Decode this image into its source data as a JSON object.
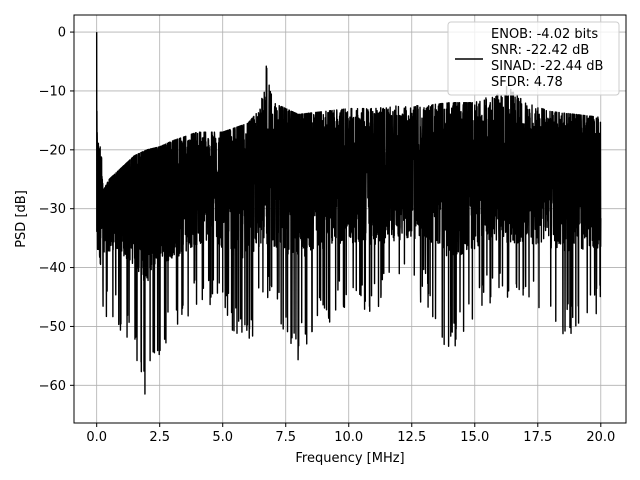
{
  "chart_data": {
    "type": "line",
    "title": "",
    "xlabel": "Frequency [MHz]",
    "ylabel": "PSD [dB]",
    "xlim": [
      -0.9,
      21.0
    ],
    "ylim": [
      -66.4,
      2.9
    ],
    "xticks": [
      0.0,
      2.5,
      5.0,
      7.5,
      10.0,
      12.5,
      15.0,
      17.5,
      20.0
    ],
    "xtick_labels": [
      "0.0",
      "2.5",
      "5.0",
      "7.5",
      "10.0",
      "12.5",
      "15.0",
      "17.5",
      "20.0"
    ],
    "yticks": [
      0,
      -10,
      -20,
      -30,
      -40,
      -50,
      -60
    ],
    "ytick_labels": [
      "0",
      "−10",
      "−20",
      "−30",
      "−40",
      "−50",
      "−60"
    ],
    "grid": true,
    "legend_position": "top-right",
    "line_color": "#000000",
    "series": [
      {
        "name": "ENOB: -4.02 bits\nSNR: -22.42 dB\nSINAD: -22.44 dB\nSFDR: 4.78",
        "color": "#000000",
        "x": [
          0.0,
          0.25,
          0.5,
          1.0,
          1.5,
          2.0,
          2.5,
          3.0,
          4.0,
          5.0,
          6.0,
          6.5,
          6.75,
          7.0,
          8.0,
          9.0,
          10.0,
          11.0,
          12.0,
          13.0,
          14.0,
          15.0,
          16.0,
          16.5,
          17.0,
          18.0,
          19.0,
          20.0
        ],
        "y_peak": [
          0.0,
          -27,
          -25,
          -23,
          -21,
          -20,
          -19.5,
          -18.5,
          -17,
          -17,
          -15.5,
          -13,
          -4.8,
          -12,
          -14,
          -13.5,
          -13,
          -13,
          -12.5,
          -12.5,
          -12,
          -12,
          -10,
          -7.5,
          -12,
          -13.5,
          -14,
          -14.5
        ],
        "y_floor": [
          -43,
          -48,
          -50,
          -51,
          -55,
          -63,
          -55,
          -52,
          -46,
          -48,
          -55,
          -48,
          -45,
          -48,
          -56,
          -50,
          -47,
          -48,
          -45,
          -46,
          -55,
          -49,
          -45,
          -47,
          -46,
          -51,
          -52,
          -48
        ],
        "y_mid": [
          -28,
          -30,
          -29,
          -28,
          -28,
          -28,
          -27,
          -27,
          -26,
          -26,
          -25,
          -24,
          -22,
          -24,
          -24,
          -24,
          -24,
          -24,
          -24,
          -24,
          -24,
          -24,
          -23,
          -23,
          -24,
          -24,
          -24,
          -25
        ]
      }
    ]
  }
}
